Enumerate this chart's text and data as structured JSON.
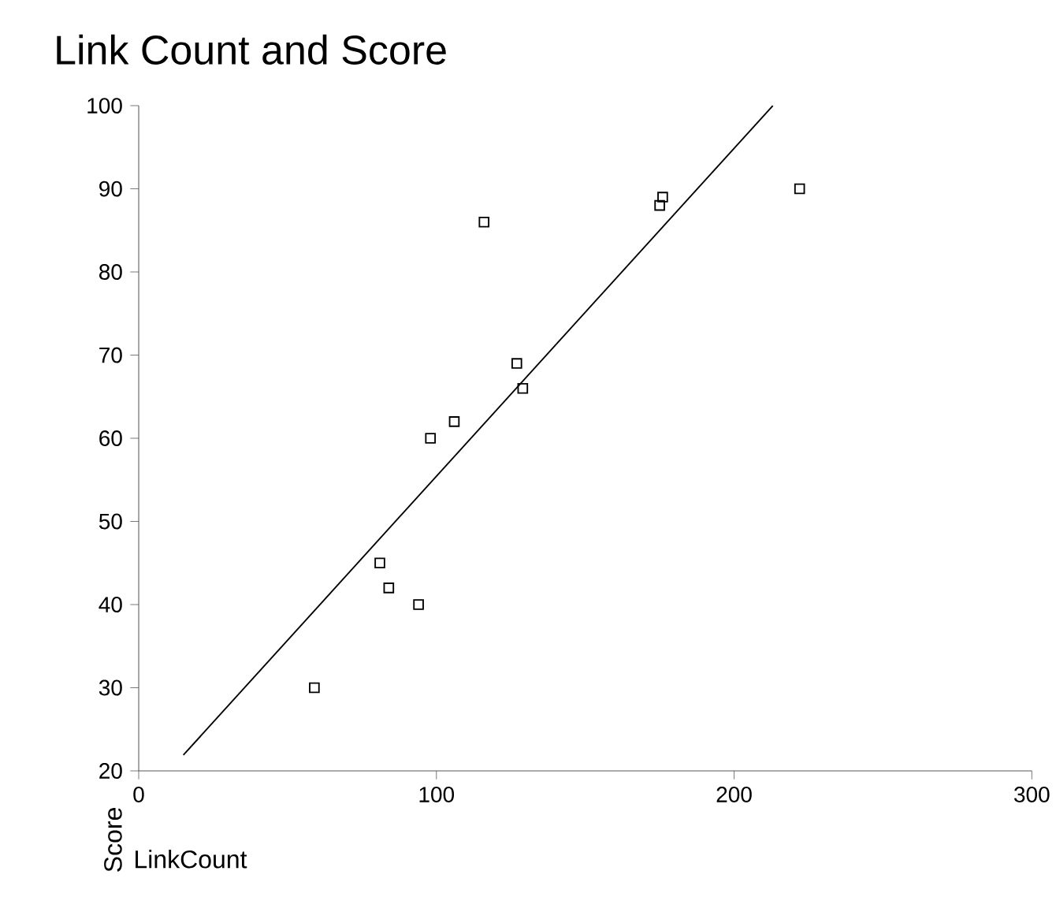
{
  "chart_data": {
    "type": "scatter",
    "title": "Link Count and Score",
    "xlabel": "LinkCount",
    "ylabel": "Score",
    "xlim": [
      0,
      300
    ],
    "xticks": [
      0,
      100,
      200,
      300
    ],
    "ylim": [
      20,
      100
    ],
    "yticks": [
      20,
      30,
      40,
      50,
      60,
      70,
      80,
      90,
      100
    ],
    "grid": false,
    "series": [
      {
        "marker": "square",
        "color": "#000000",
        "x": [
          59,
          81,
          84,
          94,
          98,
          106,
          116,
          127,
          129,
          175,
          176,
          222
        ],
        "values": [
          30,
          45,
          42,
          40,
          60,
          62,
          86,
          69,
          66,
          88,
          89,
          90
        ]
      },
      {
        "type": "line",
        "color": "#000000",
        "x": [
          15,
          213
        ],
        "values": [
          21.9,
          100
        ]
      }
    ]
  }
}
